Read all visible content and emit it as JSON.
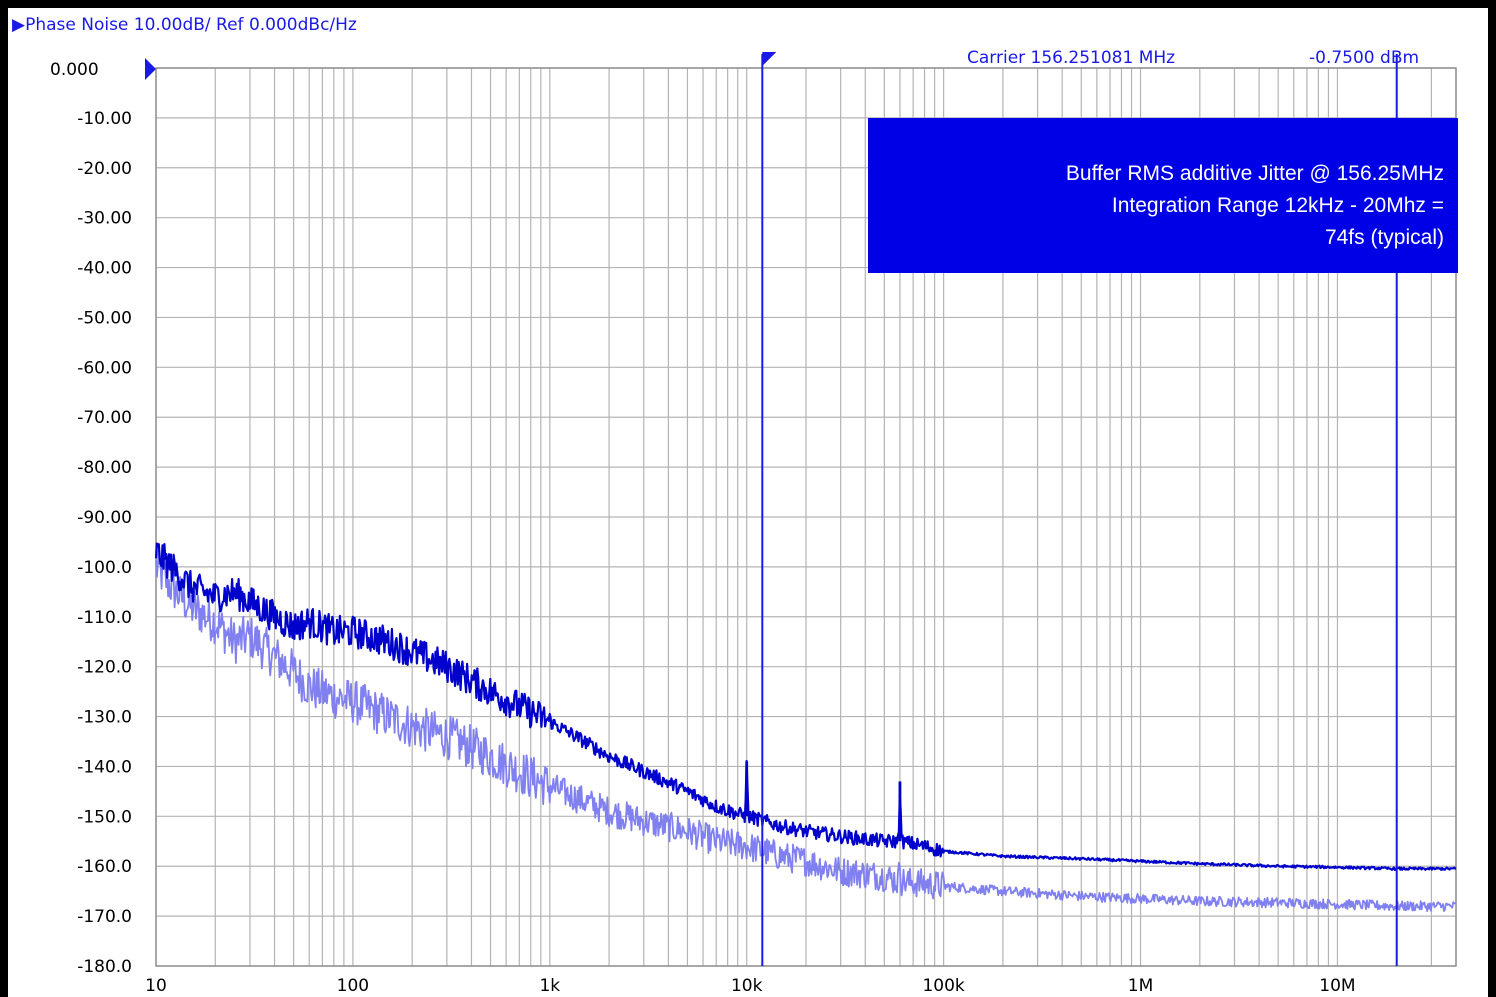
{
  "header": {
    "title": "▶Phase Noise 10.00dB/ Ref 0.000dBc/Hz",
    "carrier_label": "Carrier 156.251081 MHz",
    "power_readout": "-0.7500 dBm",
    "ref_value": "0.000"
  },
  "annotation": {
    "lines": [
      "Buffer RMS additive Jitter @ 156.25MHz",
      "Integration Range 12kHz - 20Mhz =",
      "74fs (typical)"
    ]
  },
  "colors": {
    "trace_dark": "#0000cc",
    "trace_light": "#8080f0",
    "marker": "#1a1ae6",
    "grid": "#b4b4b4",
    "annotation_bg": "#0000e6"
  },
  "chart_data": {
    "type": "line",
    "title": "",
    "xlabel": "",
    "ylabel": "",
    "x_scale": "log",
    "xlim": [
      10,
      40000000
    ],
    "ylim": [
      -180,
      0
    ],
    "grid": true,
    "x_tick_labels": [
      "10",
      "100",
      "1k",
      "10k",
      "100k",
      "1M",
      "10M"
    ],
    "x_tick_values": [
      10,
      100,
      1000,
      10000,
      100000,
      1000000,
      10000000
    ],
    "y_tick_labels": [
      "",
      "-10.00",
      "-20.00",
      "-30.00",
      "-40.00",
      "-50.00",
      "-60.00",
      "-70.00",
      "-80.00",
      "-90.00",
      "-100.0",
      "-110.0",
      "-120.0",
      "-130.0",
      "-140.0",
      "-150.0",
      "-160.0",
      "-170.0",
      "-180.0"
    ],
    "y_tick_values": [
      0,
      -10,
      -20,
      -30,
      -40,
      -50,
      -60,
      -70,
      -80,
      -90,
      -100,
      -110,
      -120,
      -130,
      -140,
      -150,
      -160,
      -170,
      -180
    ],
    "markers": [
      {
        "x": 12000
      },
      {
        "x": 20000000
      }
    ],
    "series": [
      {
        "x": [
          10,
          12,
          15,
          20,
          25,
          30,
          40,
          50,
          60,
          80,
          100,
          150,
          200,
          300,
          500,
          700,
          1000,
          1500,
          2000,
          3000,
          5000,
          7000,
          9800,
          10000,
          10200,
          15000,
          20000,
          30000,
          50000,
          59000,
          60000,
          61000,
          80000,
          100000,
          200000,
          500000,
          1000000,
          2000000,
          5000000,
          10000000,
          20000000,
          40000000
        ],
        "values": [
          -97,
          -100,
          -104,
          -106,
          -105,
          -107,
          -110,
          -112,
          -111,
          -113,
          -113,
          -115,
          -117,
          -120,
          -125,
          -128,
          -131,
          -135,
          -138,
          -141,
          -145,
          -148,
          -150,
          -139,
          -150,
          -152,
          -153,
          -154,
          -155,
          -155,
          -143,
          -155,
          -156,
          -157,
          -158,
          -158.5,
          -159,
          -159.5,
          -160,
          -160.2,
          -160.5,
          -160.5
        ]
      },
      {
        "x": [
          10,
          12,
          15,
          20,
          25,
          30,
          40,
          50,
          60,
          80,
          100,
          150,
          200,
          300,
          500,
          700,
          1000,
          1500,
          2000,
          3000,
          5000,
          7000,
          10000,
          15000,
          20000,
          30000,
          50000,
          59000,
          60000,
          61000,
          80000,
          100000,
          200000,
          500000,
          1000000,
          2000000,
          5000000,
          10000000,
          20000000,
          40000000
        ],
        "values": [
          -100,
          -104,
          -108,
          -111,
          -115,
          -114,
          -118,
          -121,
          -124,
          -126,
          -127,
          -130,
          -132,
          -134,
          -138,
          -141,
          -144,
          -147,
          -149,
          -151,
          -153,
          -155,
          -156,
          -158,
          -159,
          -161,
          -162,
          -163,
          -158,
          -163,
          -163.5,
          -164,
          -165,
          -166,
          -166.5,
          -167,
          -167.3,
          -167.6,
          -168,
          -168
        ]
      }
    ]
  }
}
